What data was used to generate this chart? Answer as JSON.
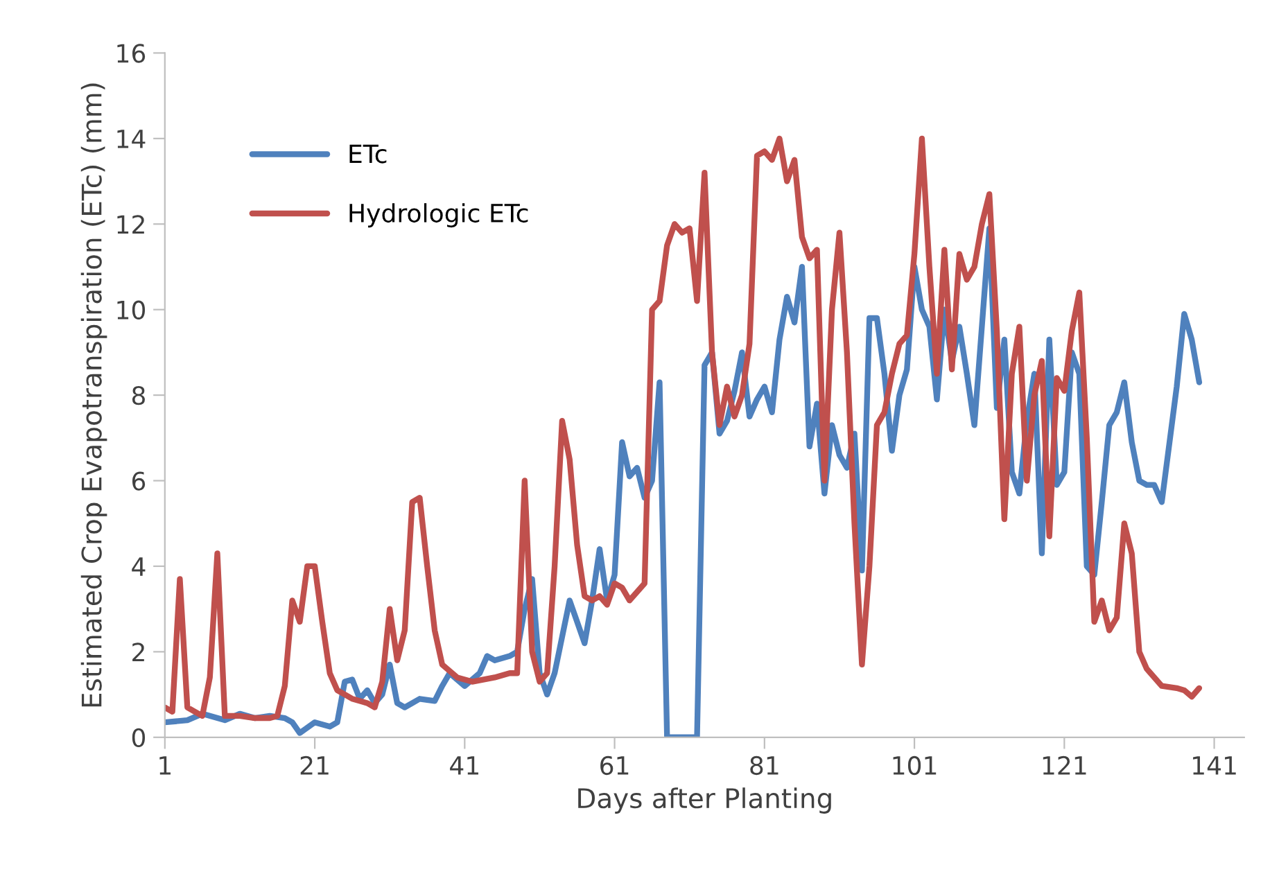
{
  "chart_data": {
    "type": "line",
    "xlabel": "Days after Planting",
    "ylabel": "Estimated Crop Evapotranspiration (ETc) (mm)",
    "xlim": [
      1,
      145
    ],
    "xticks": [
      1,
      21,
      41,
      61,
      81,
      101,
      121,
      141
    ],
    "ylim": [
      0,
      16
    ],
    "yticks": [
      0,
      2,
      4,
      6,
      8,
      10,
      12,
      14,
      16
    ],
    "grid": false,
    "legend": "top left",
    "marker": "none",
    "line_style": "solid",
    "series": [
      {
        "name": "ETc",
        "color": "#4f81bd",
        "x": [
          1,
          4,
          6,
          9,
          11,
          13,
          15,
          17,
          18,
          19,
          21,
          23,
          24,
          25,
          26,
          27,
          28,
          29,
          30,
          31,
          32,
          33,
          35,
          37,
          38,
          39,
          41,
          43,
          44,
          45,
          47,
          48,
          49,
          50,
          51,
          52,
          53,
          55,
          56,
          57,
          58,
          59,
          60,
          61,
          62,
          63,
          64,
          65,
          66,
          67,
          68,
          72,
          73,
          74,
          75,
          76,
          77,
          78,
          79,
          80,
          81,
          82,
          83,
          84,
          85,
          86,
          87,
          88,
          89,
          90,
          91,
          92,
          93,
          94,
          95,
          96,
          97,
          98,
          99,
          100,
          101,
          102,
          103,
          104,
          105,
          106,
          107,
          108,
          109,
          111,
          112,
          113,
          114,
          115,
          116,
          117,
          118,
          119,
          120,
          121,
          122,
          123,
          124,
          125,
          126,
          127,
          128,
          129,
          130,
          131,
          132,
          133,
          134,
          136,
          137,
          138,
          139
        ],
        "values": [
          0.35,
          0.4,
          0.55,
          0.4,
          0.55,
          0.45,
          0.5,
          0.45,
          0.35,
          0.1,
          0.35,
          0.25,
          0.35,
          1.3,
          1.35,
          0.9,
          1.1,
          0.8,
          1.0,
          1.7,
          0.8,
          0.7,
          0.9,
          0.85,
          1.2,
          1.5,
          1.2,
          1.5,
          1.9,
          1.8,
          1.9,
          2.0,
          3.0,
          3.7,
          1.5,
          1.0,
          1.5,
          3.2,
          2.7,
          2.2,
          3.2,
          4.4,
          3.2,
          3.8,
          6.9,
          6.1,
          6.3,
          5.6,
          6.0,
          8.3,
          0,
          0,
          8.7,
          9.0,
          7.1,
          7.4,
          8.1,
          9.0,
          7.5,
          7.9,
          8.2,
          7.6,
          9.3,
          10.3,
          9.7,
          11.0,
          6.8,
          7.8,
          5.7,
          7.3,
          6.6,
          6.3,
          7.1,
          3.9,
          9.8,
          9.8,
          8.5,
          6.7,
          8.0,
          8.6,
          11.0,
          10.0,
          9.6,
          7.9,
          10.0,
          8.8,
          9.6,
          8.5,
          7.3,
          11.9,
          7.7,
          9.3,
          6.2,
          5.7,
          7.4,
          8.5,
          4.3,
          9.3,
          5.9,
          6.2,
          9.0,
          8.5,
          4.0,
          3.8,
          5.5,
          7.3,
          7.6,
          8.3,
          6.9,
          6.0,
          5.9,
          5.9,
          5.5,
          8.2,
          9.9,
          9.3,
          8.3
        ]
      },
      {
        "name": "Hydrologic ETc",
        "color": "#c0504d",
        "x": [
          1,
          2,
          3,
          4,
          5,
          6,
          7,
          8,
          9,
          11,
          13,
          15,
          16,
          17,
          18,
          19,
          20,
          21,
          22,
          23,
          24,
          26,
          28,
          29,
          30,
          31,
          32,
          33,
          34,
          35,
          36,
          37,
          38,
          40,
          42,
          45,
          47,
          48,
          49,
          50,
          51,
          52,
          53,
          54,
          55,
          56,
          57,
          58,
          59,
          60,
          61,
          62,
          63,
          64,
          65,
          66,
          67,
          68,
          69,
          70,
          71,
          72,
          73,
          74,
          75,
          76,
          77,
          78,
          79,
          80,
          81,
          82,
          83,
          84,
          85,
          86,
          87,
          88,
          89,
          90,
          91,
          92,
          93,
          94,
          95,
          96,
          97,
          98,
          99,
          100,
          101,
          102,
          103,
          104,
          105,
          106,
          107,
          108,
          109,
          110,
          111,
          112,
          113,
          114,
          115,
          116,
          117,
          118,
          119,
          120,
          121,
          122,
          123,
          124,
          125,
          126,
          127,
          128,
          129,
          130,
          131,
          132,
          134,
          136,
          137,
          138,
          139
        ],
        "values": [
          0.7,
          0.6,
          3.7,
          0.7,
          0.6,
          0.5,
          1.4,
          4.3,
          0.5,
          0.5,
          0.45,
          0.45,
          0.5,
          1.2,
          3.2,
          2.7,
          4.0,
          4.0,
          2.7,
          1.5,
          1.1,
          0.9,
          0.8,
          0.7,
          1.3,
          3.0,
          1.8,
          2.5,
          5.5,
          5.6,
          4.0,
          2.5,
          1.7,
          1.4,
          1.3,
          1.4,
          1.5,
          1.5,
          6.0,
          2.0,
          1.3,
          1.5,
          4.0,
          7.4,
          6.5,
          4.5,
          3.3,
          3.2,
          3.3,
          3.1,
          3.6,
          3.5,
          3.2,
          3.4,
          3.6,
          10.0,
          10.2,
          11.5,
          12.0,
          11.8,
          11.9,
          10.2,
          13.2,
          9.0,
          7.3,
          8.2,
          7.5,
          8.0,
          9.2,
          13.6,
          13.7,
          13.5,
          14.0,
          13.0,
          13.5,
          11.7,
          11.2,
          11.4,
          6.0,
          10.0,
          11.8,
          9.0,
          5.0,
          1.7,
          4.0,
          7.3,
          7.6,
          8.5,
          9.2,
          9.4,
          11.3,
          14.0,
          11.0,
          8.5,
          11.4,
          8.6,
          11.3,
          10.7,
          11.0,
          12.0,
          12.7,
          9.5,
          5.1,
          8.5,
          9.6,
          6.0,
          8.0,
          8.8,
          4.7,
          8.4,
          8.1,
          9.5,
          10.4,
          7.0,
          2.7,
          3.2,
          2.5,
          2.8,
          5.0,
          4.3,
          2.0,
          1.6,
          1.2,
          1.15,
          1.1,
          0.95,
          1.15
        ]
      }
    ]
  }
}
